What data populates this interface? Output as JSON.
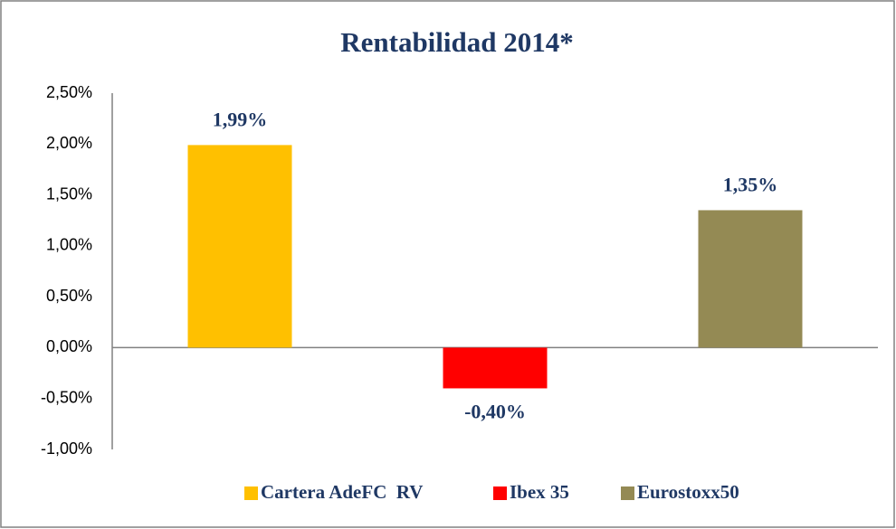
{
  "chart_data": {
    "type": "bar",
    "title": "Rentabilidad 2014*",
    "categories": [
      null
    ],
    "series": [
      {
        "name": "Cartera AdeFC  RV",
        "color": "#FFC000",
        "values": [
          1.99
        ],
        "value_labels": [
          "1,99%"
        ]
      },
      {
        "name": "Ibex 35",
        "color": "#FF0000",
        "values": [
          -0.4
        ],
        "value_labels": [
          "-0,40%"
        ]
      },
      {
        "name": "Eurostoxx50",
        "color": "#948A54",
        "values": [
          1.35
        ],
        "value_labels": [
          "1,35%"
        ]
      }
    ],
    "ylim": [
      -1,
      2.5
    ],
    "yticks": [
      {
        "value": -1,
        "label": "-1,00%"
      },
      {
        "value": -0.5,
        "label": "-0,50%"
      },
      {
        "value": 0,
        "label": "0,00%"
      },
      {
        "value": 0.5,
        "label": "0,50%"
      },
      {
        "value": 1,
        "label": "1,00%"
      },
      {
        "value": 1.5,
        "label": "1,50%"
      },
      {
        "value": 2,
        "label": "2,00%"
      },
      {
        "value": 2.5,
        "label": "2,50%"
      }
    ],
    "grid": false,
    "legend": "bottom"
  }
}
